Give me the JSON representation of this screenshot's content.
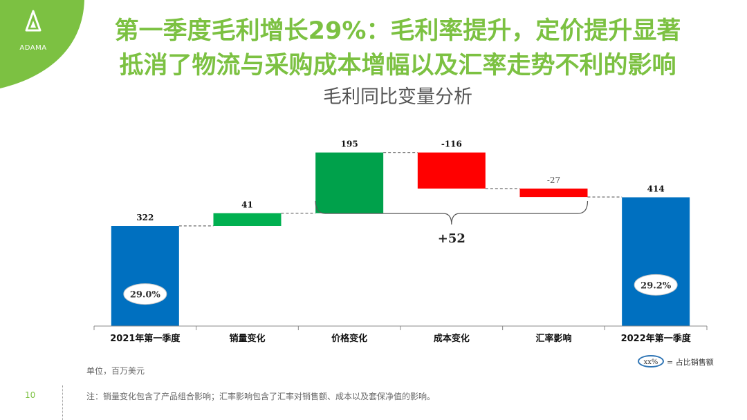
{
  "brand": {
    "logo_text": "ADAMA",
    "accent": "#7cc142"
  },
  "title_line1": "第一季度毛利增长29%：毛利率提升，定价提升显著",
  "title_line2": "抵消了物流与采购成本增幅以及汇率走势不利的影响",
  "subtitle": "毛利同比变量分析",
  "chart_data": {
    "type": "waterfall",
    "categories": [
      "2021年第一季度",
      "销量变化",
      "价格变化",
      "成本变化",
      "汇率影响",
      "2022年第一季度"
    ],
    "values": [
      322,
      41,
      195,
      -116,
      -27,
      414
    ],
    "labels": [
      "322",
      "41",
      "195",
      "-116",
      "-27",
      "414"
    ],
    "kinds": [
      "total",
      "delta",
      "delta",
      "delta",
      "delta",
      "total"
    ],
    "colors": [
      "#0070c0",
      "#00b050",
      "#00a14b",
      "#ff0000",
      "#ff0000",
      "#0070c0"
    ],
    "margins": [
      "29.0%",
      "",
      "",
      "",
      "",
      "29.2%"
    ],
    "bracket_label": "+52",
    "ylim": [
      0,
      500
    ]
  },
  "unit_text": "单位，百万美元",
  "legend": {
    "oval_text": "xx%",
    "text": "= 占比销售额"
  },
  "page_number": "10",
  "note": "注：销量变化包含了产品组合影响；汇率影响包含了汇率对销售额、成本以及套保净值的影响。"
}
